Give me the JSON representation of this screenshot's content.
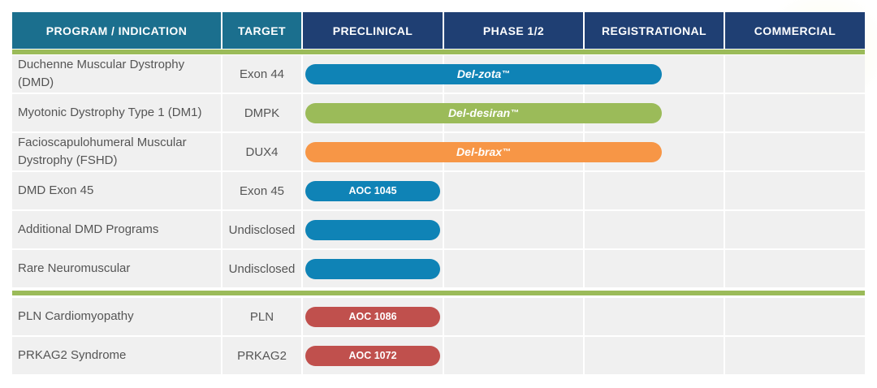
{
  "colors": {
    "header_dark": "#1f3f73",
    "header_teal": "#1b6f8e",
    "separator": "#9bbb59",
    "bar_blue": "#0f83b6",
    "bar_green": "#9bbb59",
    "bar_orange": "#f79646",
    "bar_red": "#c0504d"
  },
  "chart_data": {
    "type": "table",
    "title": "",
    "columns": [
      "PROGRAM / INDICATION",
      "TARGET",
      "PRECLINICAL",
      "PHASE 1/2",
      "REGISTRATIONAL",
      "COMMERCIAL"
    ],
    "stages": [
      "PRECLINICAL",
      "PHASE 1/2",
      "REGISTRATIONAL",
      "COMMERCIAL"
    ],
    "groups": [
      {
        "rows": [
          {
            "program": "Duchenne Muscular Dystrophy (DMD)",
            "target": "Exon 44",
            "bar_label": "Del-zota",
            "bar_tm": "™",
            "bar_color": "#0f83b6",
            "stage_start": 0,
            "stage_end": 2.55
          },
          {
            "program": "Myotonic Dystrophy Type 1 (DM1)",
            "target": "DMPK",
            "bar_label": "Del-desiran",
            "bar_tm": "™",
            "bar_color": "#9bbb59",
            "stage_start": 0,
            "stage_end": 2.55
          },
          {
            "program": "Facioscapulohumeral Muscular Dystrophy (FSHD)",
            "target": "DUX4",
            "bar_label": "Del-brax",
            "bar_tm": "™",
            "bar_color": "#f79646",
            "stage_start": 0,
            "stage_end": 2.55
          },
          {
            "program": "DMD Exon 45",
            "target": "Exon 45",
            "bar_label": "AOC 1045",
            "bar_tm": "",
            "bar_color": "#0f83b6",
            "stage_start": 0,
            "stage_end": 1
          },
          {
            "program": "Additional DMD Programs",
            "target": "Undisclosed",
            "bar_label": "",
            "bar_tm": "",
            "bar_color": "#0f83b6",
            "stage_start": 0,
            "stage_end": 1
          },
          {
            "program": "Rare Neuromuscular",
            "target": "Undisclosed",
            "bar_label": "",
            "bar_tm": "",
            "bar_color": "#0f83b6",
            "stage_start": 0,
            "stage_end": 1
          }
        ]
      },
      {
        "rows": [
          {
            "program": "PLN Cardiomyopathy",
            "target": "PLN",
            "bar_label": "AOC 1086",
            "bar_tm": "",
            "bar_color": "#c0504d",
            "stage_start": 0,
            "stage_end": 1
          },
          {
            "program": "PRKAG2 Syndrome",
            "target": "PRKAG2",
            "bar_label": "AOC 1072",
            "bar_tm": "",
            "bar_color": "#c0504d",
            "stage_start": 0,
            "stage_end": 1
          }
        ]
      }
    ]
  }
}
